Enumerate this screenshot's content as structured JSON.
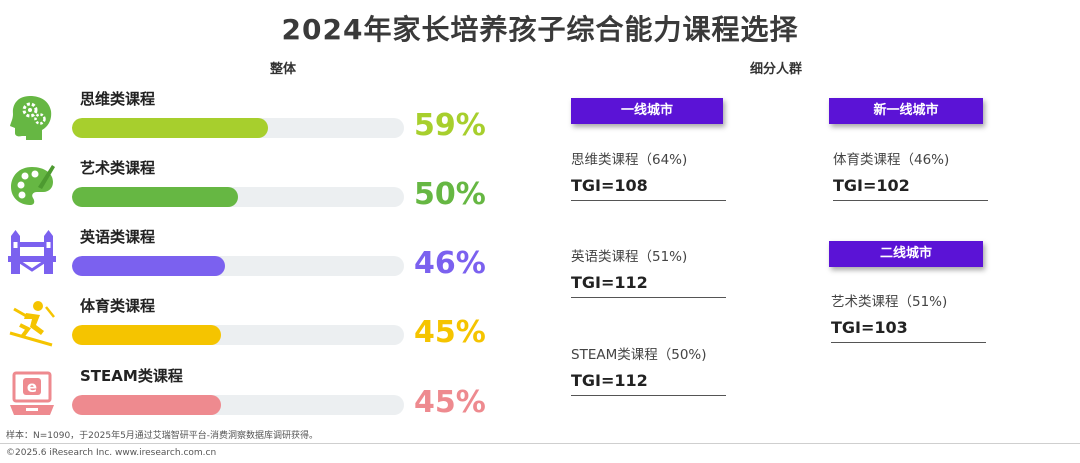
{
  "title": "2024年家长培养孩子综合能力课程选择",
  "overall_label": "整体",
  "segment_label": "细分人群",
  "colors": {
    "thinking": "#a7cf2d",
    "art": "#66b743",
    "english": "#7b61ef",
    "sports": "#f5c400",
    "steam": "#ee8a8f",
    "track": "#eceff1",
    "segment_header": "#5b13d6"
  },
  "chart_data": {
    "type": "bar",
    "title": "2024年家长培养孩子综合能力课程选择",
    "subtitle": "整体",
    "categories": [
      "思维类课程",
      "艺术类课程",
      "英语类课程",
      "体育类课程",
      "STEAM类课程"
    ],
    "values": [
      59,
      50,
      46,
      45,
      45
    ],
    "value_labels": [
      "59%",
      "50%",
      "46%",
      "45%",
      "45%"
    ],
    "icons": [
      "head-gears-icon",
      "palette-icon",
      "bridge-icon",
      "skier-icon",
      "laptop-e-icon"
    ],
    "ylim": [
      0,
      100
    ],
    "orientation": "horizontal"
  },
  "segments": {
    "tier1": {
      "header": "一线城市",
      "items": [
        {
          "course": "思维类课程（64%)",
          "tgi": "TGI=108"
        },
        {
          "course": "英语类课程（51%)",
          "tgi": "TGI=112"
        },
        {
          "course": "STEAM类课程（50%)",
          "tgi": "TGI=112"
        }
      ]
    },
    "new_tier1": {
      "header": "新一线城市",
      "items": [
        {
          "course": "体育类课程（46%)",
          "tgi": "TGI=102"
        }
      ]
    },
    "tier2": {
      "header": "二线城市",
      "items": [
        {
          "course": "艺术类课程（51%)",
          "tgi": "TGI=103"
        }
      ]
    }
  },
  "footnote": "样本：N=1090，于2025年5月通过艾瑞智研平台-消费洞察数据库调研获得。",
  "copyright": "©2025.6 iResearch Inc.                    www.iresearch.com.cn"
}
